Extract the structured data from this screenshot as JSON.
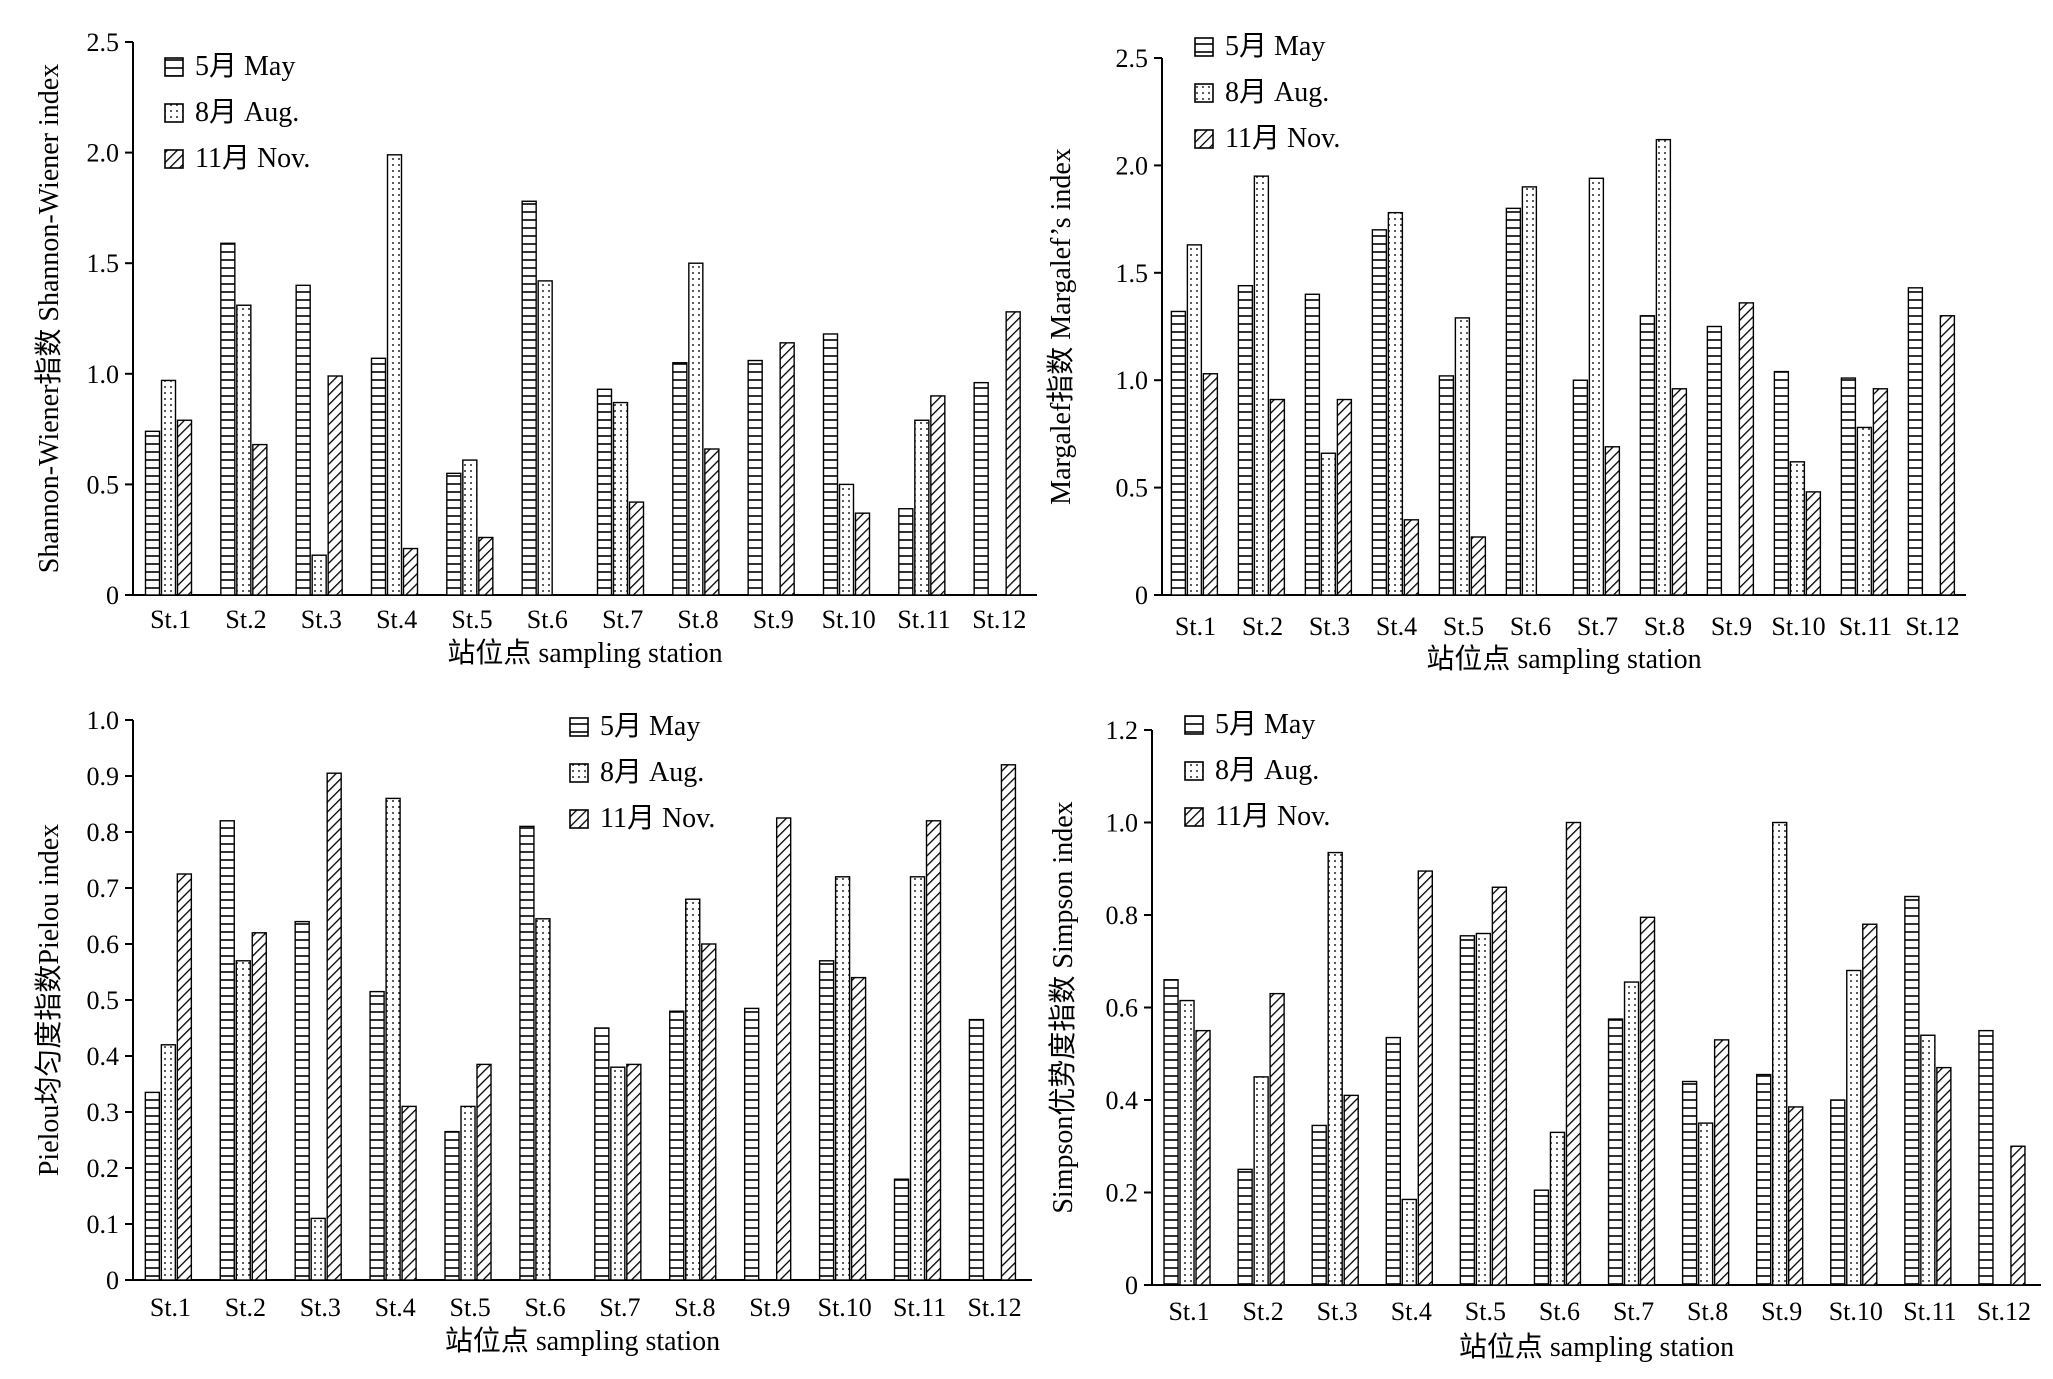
{
  "figure": {
    "stations": [
      "St.1",
      "St.2",
      "St.3",
      "St.4",
      "St.5",
      "St.6",
      "St.7",
      "St.8",
      "St.9",
      "St.10",
      "St.11",
      "St.12"
    ],
    "xlabel": "站位点 sampling station",
    "legend": [
      "5月 May",
      "8月 Aug.",
      "11月 Nov."
    ]
  },
  "chart_data": [
    {
      "type": "bar",
      "ylabel": "Shannon-Wiener指数 Shannon-Wiener index",
      "xlabel": "站位点 sampling station",
      "categories": [
        "St.1",
        "St.2",
        "St.3",
        "St.4",
        "St.5",
        "St.6",
        "St.7",
        "St.8",
        "St.9",
        "St.10",
        "St.11",
        "St.12"
      ],
      "ylim": [
        0,
        2.5
      ],
      "yticks": [
        "0",
        "0.5",
        "1.0",
        "1.5",
        "2.0",
        "2.5"
      ],
      "legend_position": "top-left",
      "series": [
        {
          "name": "5月 May",
          "values": [
            0.74,
            1.59,
            1.4,
            1.07,
            0.55,
            1.78,
            0.93,
            1.05,
            1.06,
            1.18,
            0.39,
            0.96
          ]
        },
        {
          "name": "8月 Aug.",
          "values": [
            0.97,
            1.31,
            0.18,
            1.99,
            0.61,
            1.42,
            0.87,
            1.5,
            0,
            0.5,
            0.79,
            0
          ]
        },
        {
          "name": "11月 Nov.",
          "values": [
            0.79,
            0.68,
            0.99,
            0.21,
            0.26,
            0,
            0.42,
            0.66,
            1.14,
            0.37,
            0.9,
            1.28
          ]
        }
      ]
    },
    {
      "type": "bar",
      "ylabel": "Margalef指数 Margalef’s index",
      "xlabel": "站位点 sampling station",
      "categories": [
        "St.1",
        "St.2",
        "St.3",
        "St.4",
        "St.5",
        "St.6",
        "St.7",
        "St.8",
        "St.9",
        "St.10",
        "St.11",
        "St.12"
      ],
      "ylim": [
        0,
        2.5
      ],
      "yticks": [
        "0",
        "0.5",
        "1.0",
        "1.5",
        "2.0",
        "2.5"
      ],
      "legend_position": "top-left",
      "series": [
        {
          "name": "5月 May",
          "values": [
            1.32,
            1.44,
            1.4,
            1.7,
            1.02,
            1.8,
            1.0,
            1.3,
            1.25,
            1.04,
            1.01,
            1.43
          ]
        },
        {
          "name": "8月 Aug.",
          "values": [
            1.63,
            1.95,
            0.66,
            1.78,
            1.29,
            1.9,
            1.94,
            2.12,
            0,
            0.62,
            0.78,
            0
          ]
        },
        {
          "name": "11月 Nov.",
          "values": [
            1.03,
            0.91,
            0.91,
            0.35,
            0.27,
            0,
            0.69,
            0.96,
            1.36,
            0.48,
            0.96,
            1.3
          ]
        }
      ]
    },
    {
      "type": "bar",
      "ylabel": "Pielou均匀度指数Pielou index",
      "xlabel": "站位点 sampling station",
      "categories": [
        "St.1",
        "St.2",
        "St.3",
        "St.4",
        "St.5",
        "St.6",
        "St.7",
        "St.8",
        "St.9",
        "St.10",
        "St.11",
        "St.12"
      ],
      "ylim": [
        0,
        1.0
      ],
      "yticks": [
        "0",
        "0.1",
        "0.2",
        "0.3",
        "0.4",
        "0.5",
        "0.6",
        "0.7",
        "0.8",
        "0.9",
        "1.0"
      ],
      "legend_position": "top-center",
      "series": [
        {
          "name": "5月 May",
          "values": [
            0.335,
            0.82,
            0.64,
            0.515,
            0.265,
            0.81,
            0.45,
            0.48,
            0.485,
            0.57,
            0.18,
            0.465
          ]
        },
        {
          "name": "8月 Aug.",
          "values": [
            0.42,
            0.57,
            0.11,
            0.86,
            0.31,
            0.645,
            0.38,
            0.68,
            0,
            0.72,
            0.72,
            0
          ]
        },
        {
          "name": "11月 Nov.",
          "values": [
            0.725,
            0.62,
            0.905,
            0.31,
            0.385,
            0,
            0.385,
            0.6,
            0.825,
            0.54,
            0.82,
            0.92
          ]
        }
      ]
    },
    {
      "type": "bar",
      "ylabel": "Simpson优势度指数 Simpson index",
      "xlabel": "站位点 sampling station",
      "categories": [
        "St.1",
        "St.2",
        "St.3",
        "St.4",
        "St.5",
        "St.6",
        "St.7",
        "St.8",
        "St.9",
        "St.10",
        "St.11",
        "St.12"
      ],
      "ylim": [
        0,
        1.2
      ],
      "yticks": [
        "0",
        "0.2",
        "0.4",
        "0.6",
        "0.8",
        "1.0",
        "1.2"
      ],
      "legend_position": "top-left",
      "series": [
        {
          "name": "5月 May",
          "values": [
            0.66,
            0.25,
            0.345,
            0.535,
            0.755,
            0.205,
            0.575,
            0.44,
            0.455,
            0.4,
            0.84,
            0.55
          ]
        },
        {
          "name": "8月 Aug.",
          "values": [
            0.615,
            0.45,
            0.935,
            0.185,
            0.76,
            0.33,
            0.655,
            0.35,
            1.0,
            0.68,
            0.54,
            0
          ]
        },
        {
          "name": "11月 Nov.",
          "values": [
            0.55,
            0.63,
            0.41,
            0.895,
            0.86,
            1.0,
            0.795,
            0.53,
            0.385,
            0.78,
            0.47,
            0.3
          ]
        }
      ]
    }
  ]
}
